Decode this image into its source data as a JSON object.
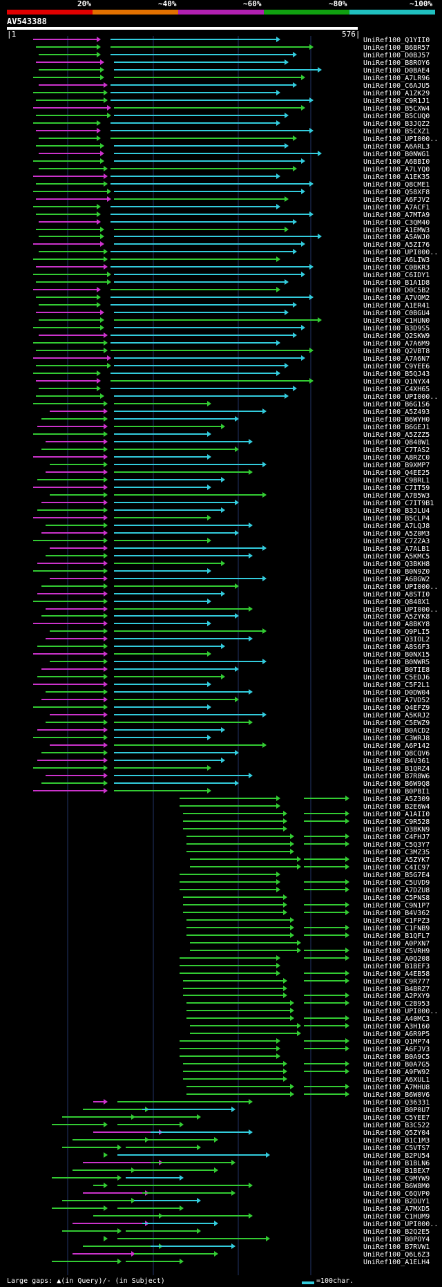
{
  "header": {
    "percent_labels": [
      "20%",
      "~40%",
      "~60%",
      "~80%",
      "~100%"
    ],
    "band_colors": [
      "#e00000",
      "#e07000",
      "#b020b0",
      "#10a010",
      "#20c0c0"
    ]
  },
  "query": {
    "name": "AV543388",
    "start": "1",
    "end": "576"
  },
  "colors": {
    "cyan": "#33ccdd",
    "green": "#33cc33",
    "magenta": "#cc33cc",
    "grid": "#223366"
  },
  "hits": [
    "UniRef100_Q1YII0",
    "UniRef100_B6BR57",
    "UniRef100_D0BJ57",
    "UniRef100_B8ROY6",
    "UniRef100_D0BAE4",
    "UniRef100_A7LR96",
    "UniRef100_C6AJU5",
    "UniRef100_A1ZK29",
    "UniRef100_C9R1J1",
    "UniRef100_B5CXW4",
    "UniRef100_B5CUQ0",
    "UniRef100_B3JQZ2",
    "UniRef100_B5CXZ1",
    "UniRef100_UPI000..",
    "UniRef100_A6ARL3",
    "UniRef100_B0NWG1",
    "UniRef100_A6BBI0",
    "UniRef100_A7LYQ0",
    "UniRef100_A1EK35",
    "UniRef100_Q8CME1",
    "UniRef100_Q58XF8",
    "UniRef100_A6FJV2",
    "UniRef100_A7ACF1",
    "UniRef100_A7MTA9",
    "UniRef100_C3QM40",
    "UniRef100_A1EMW3",
    "UniRef100_A5AWJ0",
    "UniRef100_A5ZI76",
    "UniRef100_UPI000..",
    "UniRef100_A6LIW3",
    "UniRef100_C0BKR3",
    "UniRef100_C6IDY1",
    "UniRef100_B1A1D8",
    "UniRef100_D0C5B2",
    "UniRef100_A7VOM2",
    "UniRef100_A1ER41",
    "UniRef100_C0BGU4",
    "UniRef100_C1HUN0",
    "UniRef100_B3D9S5",
    "UniRef100_Q2SKW9",
    "UniRef100_A7A6M9",
    "UniRef100_Q2VBT8",
    "UniRef100_A7A6N7",
    "UniRef100_C9YEE6",
    "UniRef100_B5QJ43",
    "UniRef100_Q1NYX4",
    "UniRef100_C4XH65",
    "UniRef100_UPI000..",
    "UniRef100_B6G1S6",
    "UniRef100_A5Z493",
    "UniRef100_B6WYH0",
    "UniRef100_B6GEJ1",
    "UniRef100_A5ZZZ5",
    "UniRef100_Q848W1",
    "UniRef100_C7TAS2",
    "UniRef100_A8RZC0",
    "UniRef100_B9XMP7",
    "UniRef100_Q4EE25",
    "UniRef100_C9BRL1",
    "UniRef100_C7IT59",
    "UniRef100_A7B5W3",
    "UniRef100_C7IT9B1",
    "UniRef100_B3JLU4",
    "UniRef100_B5CLP4",
    "UniRef100_A7LQJ8",
    "UniRef100_A5Z0M3",
    "UniRef100_C7ZZA3",
    "UniRef100_A7ALB1",
    "UniRef100_A5KMC5",
    "UniRef100_Q3BKH8",
    "UniRef100_B0N9Z0",
    "UniRef100_A6BGW2",
    "UniRef100_UPI000..",
    "UniRef100_A8STI0",
    "UniRef100_Q848X1",
    "UniRef100_UPI000..",
    "UniRef100_A5ZYK8",
    "UniRef100_A8BKY8",
    "UniRef100_Q9PLI5",
    "UniRef100_Q3IOL2",
    "UniRef100_A8S6F3",
    "UniRef100_B0NX15",
    "UniRef100_B0NWR5",
    "UniRef100_B0TIE8",
    "UniRef100_C5EDJ6",
    "UniRef100_C5F2L1",
    "UniRef100_D0DW04",
    "UniRef100_A7VD52",
    "UniRef100_Q4EFZ9",
    "UniRef100_A5KRJ2",
    "UniRef100_C5EWZ9",
    "UniRef100_B0ACD2",
    "UniRef100_C3WRJ8",
    "UniRef100_A6P142",
    "UniRef100_Q8CQV6",
    "UniRef100_B4V361",
    "UniRef100_B1QRZ4",
    "UniRef100_B7R8W6",
    "UniRef100_B6W9Q8",
    "UniRef100_B0PBI1",
    "UniRef100_A5Z309",
    "UniRef100_B2E6W4",
    "UniRef100_A1AII0",
    "UniRef100_C9R528",
    "UniRef100_Q3BKN9",
    "UniRef100_C4FHJ7",
    "UniRef100_C5Q3Y7",
    "UniRef100_C3MZ35",
    "UniRef100_A5ZYK7",
    "UniRef100_C4IC97",
    "UniRef100_B5G7E4",
    "UniRef100_C5UVD9",
    "UniRef100_A7DZU8",
    "UniRef100_C5PNS8",
    "UniRef100_C9N1P7",
    "UniRef100_B4V362",
    "UniRef100_C1FPZ3",
    "UniRef100_C1FNB9",
    "UniRef100_B1QFL7",
    "UniRef100_A0PXN7",
    "UniRef100_C5VRH9",
    "UniRef100_A0Q208",
    "UniRef100_B1BEF3",
    "UniRef100_A4EB58",
    "UniRef100_C9R777",
    "UniRef100_B4BRZ7",
    "UniRef100_A2PXY9",
    "UniRef100_C2B953",
    "UniRef100_UPI000..",
    "UniRef100_A40MC3",
    "UniRef100_A3H160",
    "UniRef100_A6R9P5",
    "UniRef100_Q1MP74",
    "UniRef100_A6FJV3",
    "UniRef100_B0A9C5",
    "UniRef100_B0A7G5",
    "UniRef100_A9FW92",
    "UniRef100_A6XUL1",
    "UniRef100_A7MHU8",
    "UniRef100_B6W0V6",
    "UniRef100_Q36331",
    "UniRef100_B0P0U7",
    "UniRef100_C5YEE7",
    "UniRef100_B3C522",
    "UniRef100_Q5ZY04",
    "UniRef100_B1C1M3",
    "UniRef100_C5VTS7",
    "UniRef100_B2PU54",
    "UniRef100_B1BLN6",
    "UniRef100_B1BEX7",
    "UniRef100_C9MYW9",
    "UniRef100_B6W8M0",
    "UniRef100_C6QVP0",
    "UniRef100_B2DUY1",
    "UniRef100_A7MXD5",
    "UniRef100_C1HUM9",
    "UniRef100_UPI000..",
    "UniRef100_B2Q2E5",
    "UniRef100_B0POY4",
    "UniRef100_B7RVW1",
    "UniRef100_Q6L6Z3",
    "UniRef100_A1ELH4"
  ],
  "legend": {
    "gap_text": "Large gaps: ▲(in Query)/- (in Subject)",
    "scale_text": "=100char."
  }
}
